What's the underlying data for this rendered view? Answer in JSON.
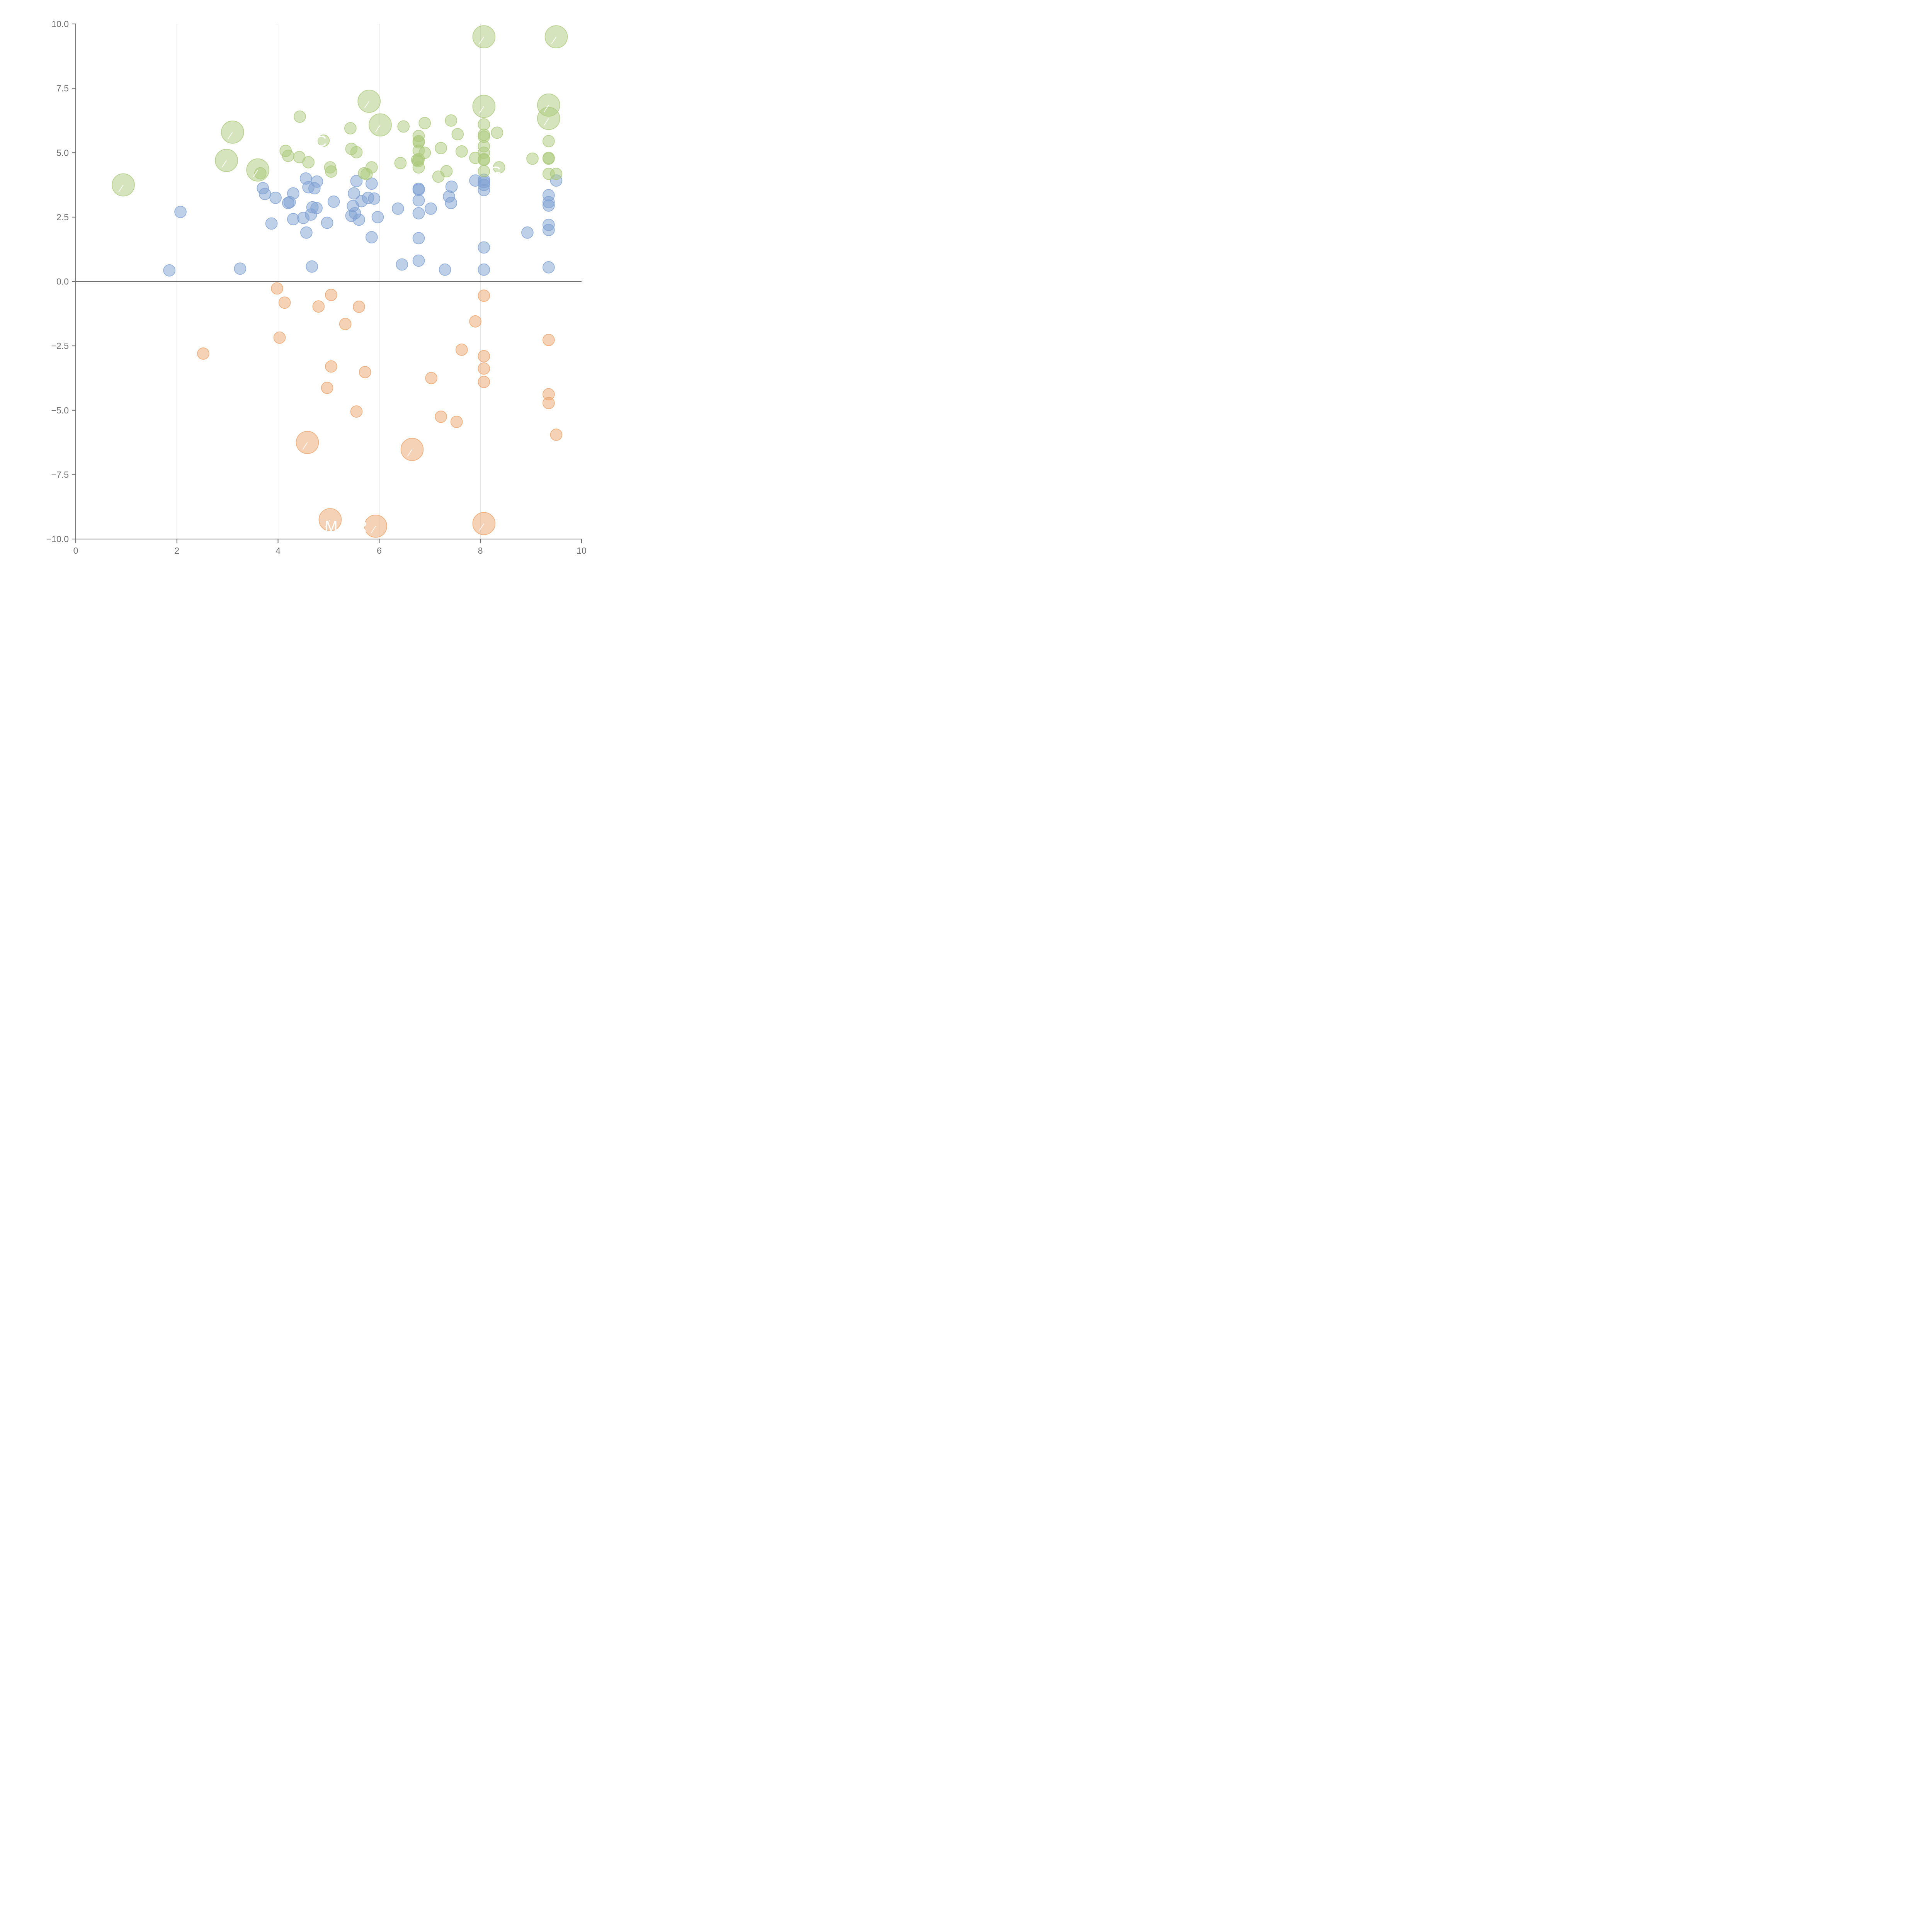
{
  "colors": {
    "blue": "#7ea0d2",
    "green": "#acc97c",
    "orange": "#eba36b",
    "axis": "#6e6e6e",
    "grid": "#dcdcdc"
  },
  "chart_data": {
    "type": "scatter",
    "title": "",
    "xlabel": "",
    "ylabel": "",
    "xlim": [
      0,
      10
    ],
    "ylim": [
      -10,
      10
    ],
    "grid_x": true,
    "x_gridlines": [
      2,
      4,
      6,
      8
    ],
    "reference_line_y": 0,
    "x_ticks": [
      "0",
      "2",
      "4",
      "6",
      "8",
      "10"
    ],
    "x_tick_values": [
      0,
      2,
      4,
      6,
      8,
      10
    ],
    "y_ticks": [
      "10.0",
      "7.5",
      "5.0",
      "2.5",
      "0.0",
      "−2.5",
      "−5.0",
      "−7.5",
      "−10.0"
    ],
    "y_tick_values": [
      10,
      7.5,
      5,
      2.5,
      0,
      -2.5,
      -5,
      -7.5,
      -10
    ],
    "series": [
      {
        "name": "blue",
        "color": "#7ea0d2",
        "points": [
          [
            1.85,
            0.43,
            1
          ],
          [
            2.07,
            2.7,
            1
          ],
          [
            3.25,
            0.5,
            1
          ],
          [
            3.7,
            3.62,
            1
          ],
          [
            3.74,
            3.4,
            1
          ],
          [
            3.87,
            2.25,
            1
          ],
          [
            3.95,
            3.25,
            1
          ],
          [
            4.2,
            3.05,
            1
          ],
          [
            4.23,
            3.08,
            1
          ],
          [
            4.3,
            2.42,
            1
          ],
          [
            4.3,
            3.42,
            1
          ],
          [
            4.5,
            2.47,
            1
          ],
          [
            4.55,
            4.0,
            1
          ],
          [
            4.56,
            1.9,
            1
          ],
          [
            4.6,
            3.66,
            1
          ],
          [
            4.65,
            2.6,
            1
          ],
          [
            4.67,
            0.58,
            1
          ],
          [
            4.68,
            2.88,
            1
          ],
          [
            4.72,
            3.62,
            1
          ],
          [
            4.76,
            2.85,
            1
          ],
          [
            4.77,
            3.88,
            1
          ],
          [
            4.97,
            2.28,
            1
          ],
          [
            5.1,
            3.1,
            1
          ],
          [
            5.45,
            2.55,
            1
          ],
          [
            5.48,
            2.93,
            1
          ],
          [
            5.5,
            3.42,
            1
          ],
          [
            5.52,
            2.65,
            1
          ],
          [
            5.55,
            3.9,
            1
          ],
          [
            5.6,
            2.4,
            1
          ],
          [
            5.65,
            3.12,
            1
          ],
          [
            5.78,
            3.25,
            1
          ],
          [
            5.85,
            1.72,
            1
          ],
          [
            5.85,
            3.8,
            1
          ],
          [
            5.9,
            3.22,
            1
          ],
          [
            5.97,
            2.5,
            1
          ],
          [
            6.37,
            2.83,
            1
          ],
          [
            6.45,
            0.66,
            1
          ],
          [
            6.78,
            0.81,
            1
          ],
          [
            6.78,
            1.68,
            1
          ],
          [
            6.78,
            2.65,
            1
          ],
          [
            6.78,
            3.15,
            1
          ],
          [
            6.78,
            3.56,
            1
          ],
          [
            6.78,
            3.6,
            1
          ],
          [
            7.02,
            2.83,
            1
          ],
          [
            7.3,
            0.46,
            1
          ],
          [
            7.38,
            3.3,
            1
          ],
          [
            7.42,
            3.05,
            1
          ],
          [
            7.43,
            3.68,
            1
          ],
          [
            7.9,
            3.92,
            1
          ],
          [
            8.07,
            0.46,
            1
          ],
          [
            8.07,
            1.32,
            1
          ],
          [
            8.07,
            3.55,
            1
          ],
          [
            8.07,
            3.75,
            1
          ],
          [
            8.07,
            3.86,
            1
          ],
          [
            8.07,
            3.95,
            1
          ],
          [
            8.93,
            1.9,
            1
          ],
          [
            9.35,
            0.55,
            1
          ],
          [
            9.35,
            2.0,
            1
          ],
          [
            9.35,
            2.2,
            1
          ],
          [
            9.35,
            2.95,
            1
          ],
          [
            9.35,
            3.08,
            1
          ],
          [
            9.35,
            3.35,
            1
          ],
          [
            9.5,
            3.92,
            1
          ]
        ]
      },
      {
        "name": "green",
        "color": "#acc97c",
        "points": [
          [
            0.94,
            3.75,
            2
          ],
          [
            2.98,
            4.7,
            2
          ],
          [
            3.1,
            5.8,
            2
          ],
          [
            3.6,
            4.33,
            2
          ],
          [
            3.65,
            4.2,
            1
          ],
          [
            4.15,
            5.07,
            1
          ],
          [
            4.2,
            4.88,
            1
          ],
          [
            4.42,
            4.83,
            1
          ],
          [
            4.43,
            6.4,
            1
          ],
          [
            4.6,
            4.63,
            1
          ],
          [
            4.9,
            5.47,
            1
          ],
          [
            5.03,
            4.43,
            1
          ],
          [
            5.05,
            4.27,
            1
          ],
          [
            5.43,
            5.95,
            1
          ],
          [
            5.45,
            5.15,
            1
          ],
          [
            5.55,
            5.02,
            1
          ],
          [
            5.7,
            4.2,
            1
          ],
          [
            5.75,
            4.17,
            1
          ],
          [
            5.85,
            4.43,
            1
          ],
          [
            5.8,
            7.0,
            2
          ],
          [
            6.02,
            6.08,
            2
          ],
          [
            6.42,
            4.6,
            1
          ],
          [
            6.48,
            6.02,
            1
          ],
          [
            6.75,
            4.72,
            1
          ],
          [
            6.77,
            4.67,
            1
          ],
          [
            6.78,
            4.43,
            1
          ],
          [
            6.78,
            4.75,
            1
          ],
          [
            6.78,
            5.08,
            1
          ],
          [
            6.78,
            5.4,
            1
          ],
          [
            6.78,
            5.45,
            1
          ],
          [
            6.78,
            5.65,
            1
          ],
          [
            6.9,
            5.0,
            1
          ],
          [
            6.9,
            6.15,
            1
          ],
          [
            7.17,
            4.07,
            1
          ],
          [
            7.22,
            5.18,
            1
          ],
          [
            7.33,
            4.28,
            1
          ],
          [
            7.42,
            6.25,
            1
          ],
          [
            7.55,
            5.72,
            1
          ],
          [
            7.63,
            5.05,
            1
          ],
          [
            7.9,
            4.8,
            1
          ],
          [
            8.07,
            4.28,
            1
          ],
          [
            8.07,
            4.72,
            1
          ],
          [
            8.07,
            4.75,
            1
          ],
          [
            8.07,
            5.0,
            1
          ],
          [
            8.07,
            5.25,
            1
          ],
          [
            8.07,
            5.62,
            1
          ],
          [
            8.07,
            5.7,
            1
          ],
          [
            8.07,
            6.1,
            1
          ],
          [
            8.07,
            6.8,
            2
          ],
          [
            8.07,
            9.5,
            2
          ],
          [
            8.33,
            5.78,
            1
          ],
          [
            8.37,
            4.43,
            1
          ],
          [
            9.03,
            4.77,
            1
          ],
          [
            9.35,
            4.18,
            1
          ],
          [
            9.35,
            4.77,
            1
          ],
          [
            9.35,
            4.8,
            1
          ],
          [
            9.35,
            5.45,
            1
          ],
          [
            9.35,
            6.33,
            2
          ],
          [
            9.35,
            6.85,
            2
          ],
          [
            9.5,
            4.18,
            1
          ],
          [
            9.5,
            9.5,
            2
          ]
        ]
      },
      {
        "name": "orange",
        "color": "#eba36b",
        "points": [
          [
            2.52,
            -2.8,
            1
          ],
          [
            3.98,
            -0.27,
            1
          ],
          [
            4.03,
            -2.18,
            1
          ],
          [
            4.13,
            -0.82,
            1
          ],
          [
            4.58,
            -6.25,
            2
          ],
          [
            4.8,
            -0.97,
            1
          ],
          [
            4.97,
            -4.13,
            1
          ],
          [
            5.03,
            -9.25,
            2
          ],
          [
            5.05,
            -0.52,
            1
          ],
          [
            5.05,
            -3.3,
            1
          ],
          [
            5.33,
            -1.65,
            1
          ],
          [
            5.55,
            -5.05,
            1
          ],
          [
            5.6,
            -0.98,
            1
          ],
          [
            5.72,
            -3.52,
            1
          ],
          [
            5.93,
            -9.5,
            2
          ],
          [
            6.65,
            -6.52,
            2
          ],
          [
            7.03,
            -3.75,
            1
          ],
          [
            7.22,
            -5.25,
            1
          ],
          [
            7.53,
            -5.45,
            1
          ],
          [
            7.63,
            -2.65,
            1
          ],
          [
            7.9,
            -1.55,
            1
          ],
          [
            8.07,
            -0.55,
            1
          ],
          [
            8.07,
            -2.9,
            1
          ],
          [
            8.07,
            -3.38,
            1
          ],
          [
            8.07,
            -3.9,
            1
          ],
          [
            8.07,
            -9.4,
            2
          ],
          [
            9.35,
            -2.27,
            1
          ],
          [
            9.35,
            -4.38,
            1
          ],
          [
            9.35,
            -4.72,
            1
          ],
          [
            9.5,
            -5.95,
            1
          ]
        ]
      }
    ],
    "point_labels": [
      {
        "text": "C",
        "x": 4.85,
        "y": 5.4,
        "series": "green"
      },
      {
        "text": "G",
        "x": 8.3,
        "y": 4.2,
        "series": "green"
      },
      {
        "text": "M",
        "x": 5.05,
        "y": -9.55,
        "series": "orange"
      },
      {
        "text": "R",
        "x": 5.65,
        "y": -9.55,
        "series": "orange"
      }
    ]
  }
}
